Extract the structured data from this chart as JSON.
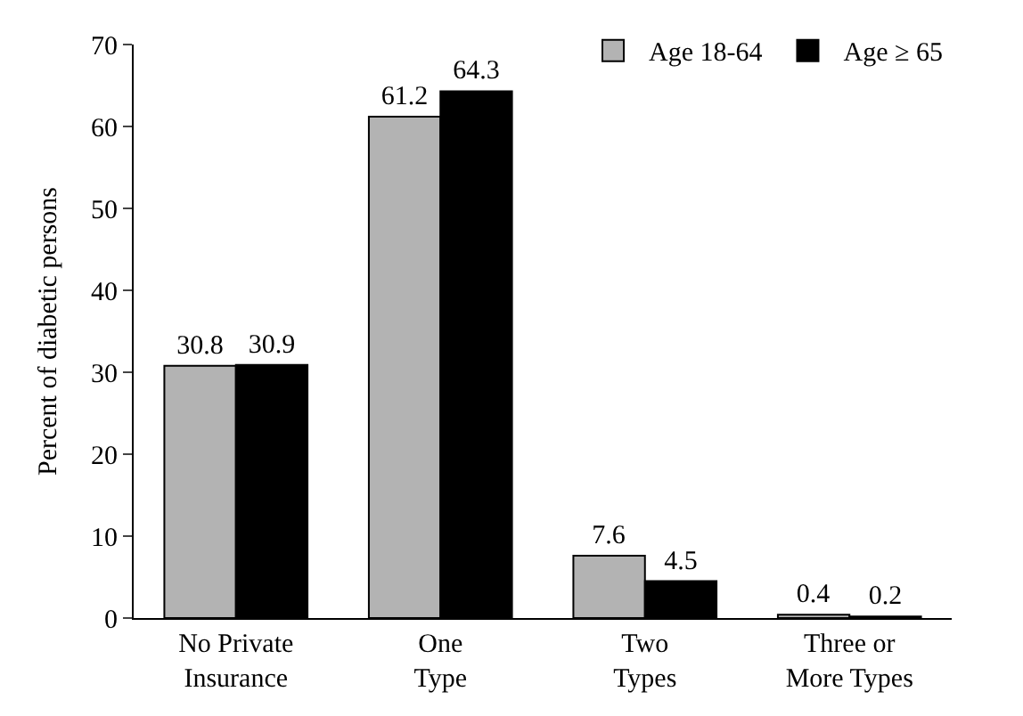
{
  "chart_data": {
    "type": "bar",
    "ylabel": "Percent of diabetic persons",
    "categories": [
      "No Private\nInsurance",
      "One\nType",
      "Two\nTypes",
      "Three or\nMore Types"
    ],
    "series": [
      {
        "name": "Age 18-64",
        "color": "#b3b3b3",
        "values": [
          30.8,
          61.2,
          7.6,
          0.4
        ]
      },
      {
        "name": "Age ≥ 65",
        "color": "#000000",
        "values": [
          30.9,
          64.3,
          4.5,
          0.2
        ]
      }
    ],
    "ylim": [
      0,
      70
    ],
    "yticks": [
      0,
      10,
      20,
      30,
      40,
      50,
      60,
      70
    ],
    "data_labels": true,
    "legend": "top right"
  }
}
